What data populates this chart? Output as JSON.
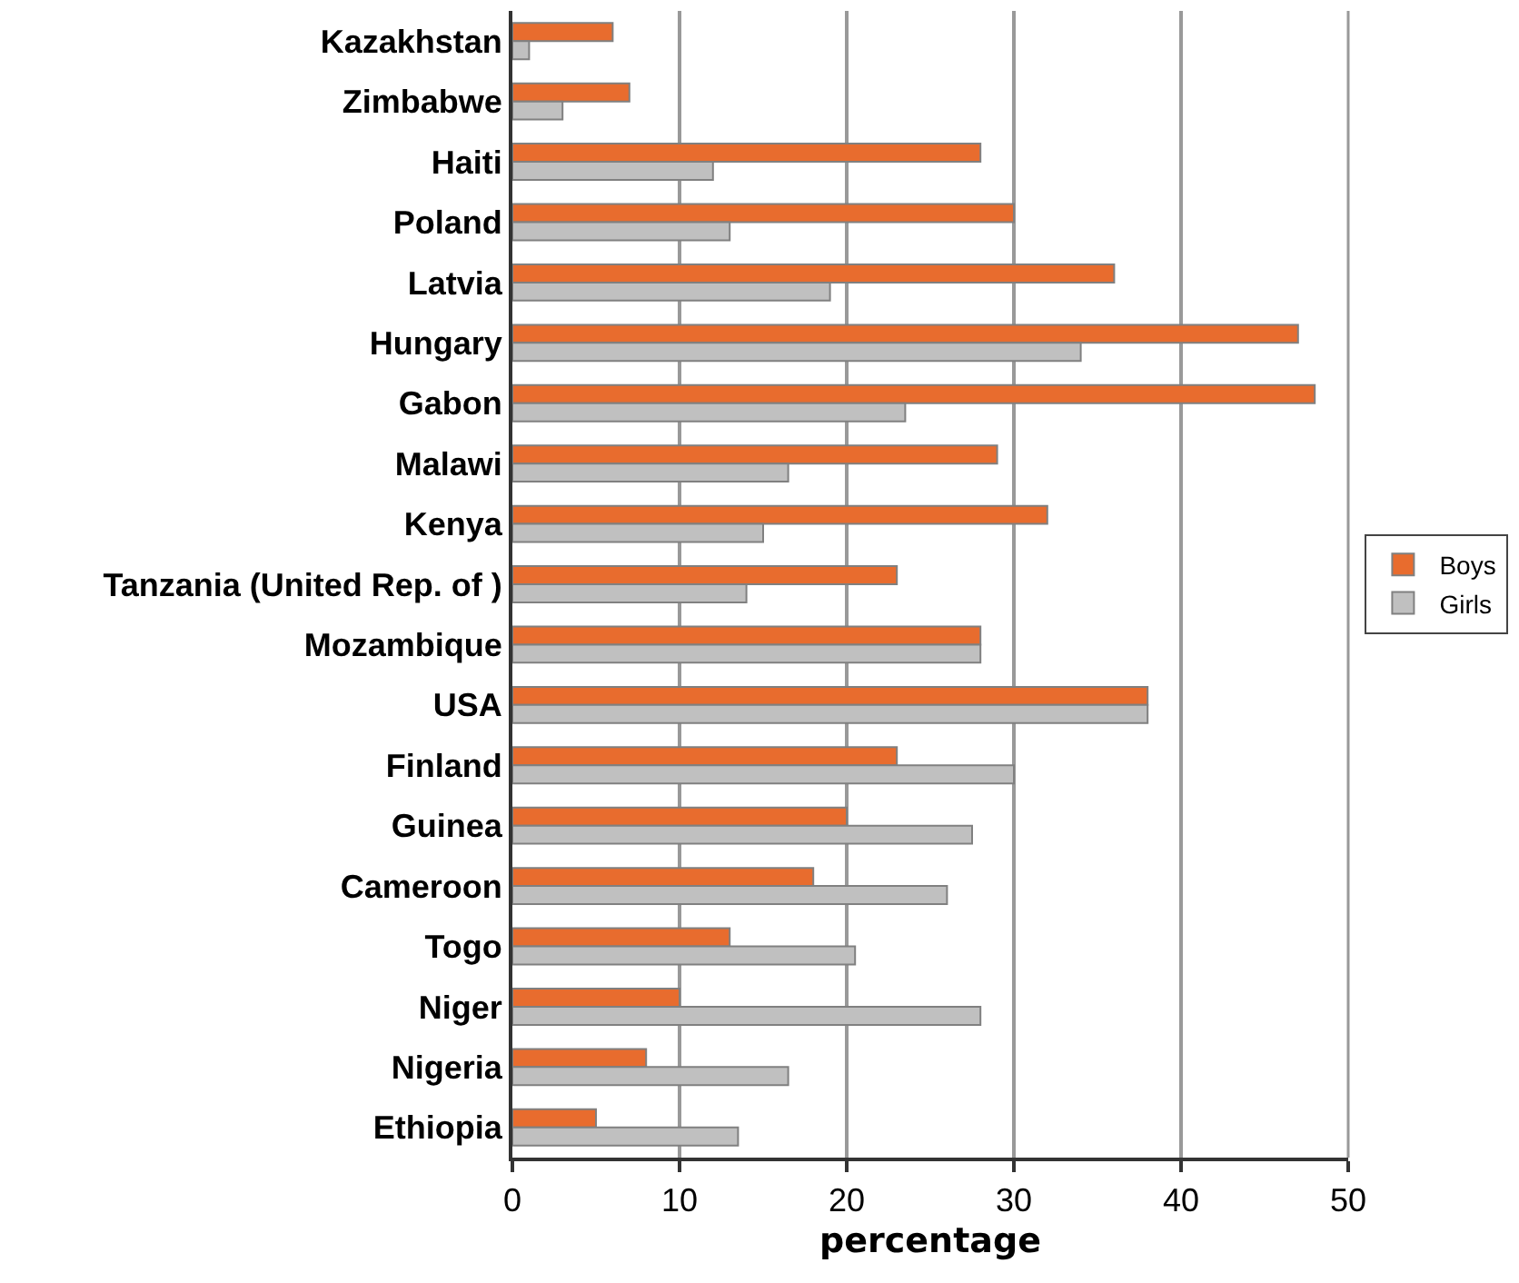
{
  "chart_data": {
    "type": "bar",
    "orientation": "horizontal",
    "xlabel": "percentage",
    "categories": [
      "Kazakhstan",
      "Zimbabwe",
      "Haiti",
      "Poland",
      "Latvia",
      "Hungary",
      "Gabon",
      "Malawi",
      "Kenya",
      "Tanzania (United Rep. of )",
      "Mozambique",
      "USA",
      "Finland",
      "Guinea",
      "Cameroon",
      "Togo",
      "Niger",
      "Nigeria",
      "Ethiopia"
    ],
    "series": [
      {
        "name": "Boys",
        "color": "#e86c2e",
        "values": [
          6,
          7,
          28,
          30,
          36,
          47,
          48,
          29,
          32,
          23,
          28,
          38,
          23,
          20,
          18,
          13,
          10,
          8,
          5
        ]
      },
      {
        "name": "Girls",
        "color": "#c0c0c0",
        "values": [
          1,
          3,
          12,
          13,
          19,
          34,
          23.5,
          16.5,
          15,
          14,
          28,
          38,
          30,
          27.5,
          26,
          20.5,
          28,
          16.5,
          13.5
        ]
      }
    ],
    "xlim": [
      0,
      50
    ],
    "xticks": [
      0,
      10,
      20,
      30,
      40,
      50
    ],
    "grid": "x",
    "legend": "right"
  }
}
